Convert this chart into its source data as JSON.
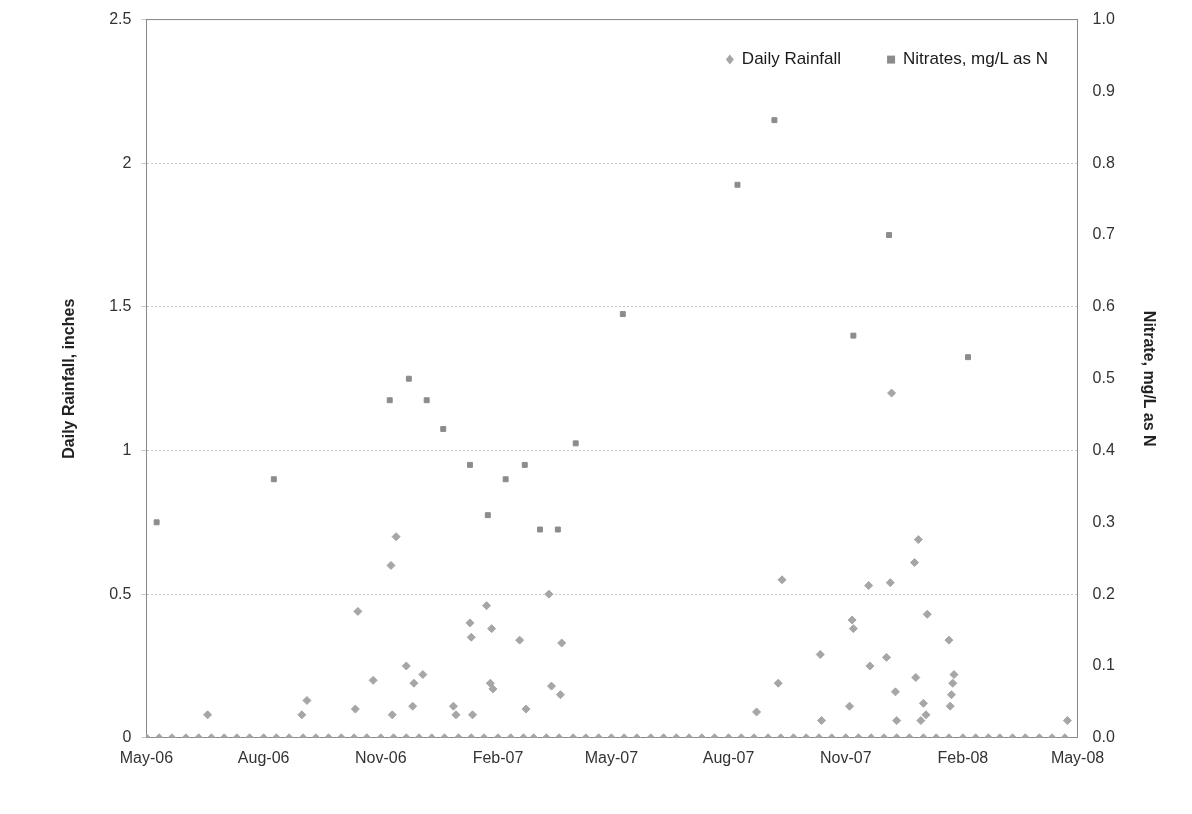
{
  "chart_data": {
    "type": "scatter",
    "ylabel": "Daily Rainfall, inches",
    "y2label": "Nitrate, mg/L as N",
    "xlim": [
      "2006-05-01",
      "2008-05-01"
    ],
    "xticks": [
      {
        "value": "2006-05-01",
        "label": "May-06"
      },
      {
        "value": "2006-08-01",
        "label": "Aug-06"
      },
      {
        "value": "2006-11-01",
        "label": "Nov-06"
      },
      {
        "value": "2007-02-01",
        "label": "Feb-07"
      },
      {
        "value": "2007-05-01",
        "label": "May-07"
      },
      {
        "value": "2007-08-01",
        "label": "Aug-07"
      },
      {
        "value": "2007-11-01",
        "label": "Nov-07"
      },
      {
        "value": "2008-02-01",
        "label": "Feb-08"
      },
      {
        "value": "2008-05-01",
        "label": "May-08"
      }
    ],
    "ylim": [
      0,
      2.5
    ],
    "yticks": [
      0,
      0.5,
      1,
      1.5,
      2,
      2.5
    ],
    "y2lim": [
      0,
      1
    ],
    "y2ticks": [
      {
        "value": 0,
        "label": "0.0"
      },
      {
        "value": 0.1,
        "label": "0.1"
      },
      {
        "value": 0.2,
        "label": "0.2"
      },
      {
        "value": 0.3,
        "label": "0.3"
      },
      {
        "value": 0.4,
        "label": "0.4"
      },
      {
        "value": 0.5,
        "label": "0.5"
      },
      {
        "value": 0.6,
        "label": "0.6"
      },
      {
        "value": 0.7,
        "label": "0.7"
      },
      {
        "value": 0.8,
        "label": "0.8"
      },
      {
        "value": 0.9,
        "label": "0.9"
      },
      {
        "value": 1,
        "label": "1.0"
      }
    ],
    "grid": "y",
    "legend": "top right",
    "series": [
      {
        "name": "Daily Rainfall",
        "color": "#a6a6a6",
        "marker": "diamond",
        "x": [
          "2006-06-18",
          "2006-08-31",
          "2006-09-04",
          "2006-10-12",
          "2006-10-14",
          "2006-10-26",
          "2006-11-09",
          "2006-11-10",
          "2006-11-13",
          "2006-11-21",
          "2006-11-26",
          "2006-11-27",
          "2006-12-04",
          "2006-12-28",
          "2006-12-30",
          "2007-01-10",
          "2007-01-11",
          "2007-01-12",
          "2007-01-23",
          "2007-01-26",
          "2007-01-27",
          "2007-01-28",
          "2007-02-18",
          "2007-02-23",
          "2007-03-13",
          "2007-03-15",
          "2007-03-22",
          "2007-03-23",
          "2007-08-23",
          "2007-09-09",
          "2007-09-12",
          "2007-10-12",
          "2007-10-13",
          "2007-11-04",
          "2007-11-06",
          "2007-11-07",
          "2007-11-19",
          "2007-11-20",
          "2007-12-03",
          "2007-12-06",
          "2007-12-07",
          "2007-12-10",
          "2007-12-11",
          "2007-12-25",
          "2007-12-26",
          "2007-12-28",
          "2007-12-30",
          "2008-01-01",
          "2008-01-03",
          "2008-01-04",
          "2008-01-21",
          "2008-01-22",
          "2008-01-23",
          "2008-01-24",
          "2008-01-25",
          "2008-04-23",
          "2006-05-01",
          "2006-05-11",
          "2006-05-21",
          "2006-06-01",
          "2006-06-11",
          "2006-06-21",
          "2006-07-01",
          "2006-07-11",
          "2006-07-21",
          "2006-08-01",
          "2006-08-11",
          "2006-08-21",
          "2006-09-01",
          "2006-09-11",
          "2006-09-21",
          "2006-10-01",
          "2006-10-11",
          "2006-10-21",
          "2006-11-01",
          "2006-11-11",
          "2006-11-21",
          "2006-12-01",
          "2006-12-11",
          "2006-12-21",
          "2007-01-01",
          "2007-01-11",
          "2007-01-21",
          "2007-02-01",
          "2007-02-11",
          "2007-02-21",
          "2007-03-01",
          "2007-03-11",
          "2007-03-21",
          "2007-04-01",
          "2007-04-11",
          "2007-04-21",
          "2007-05-01",
          "2007-05-11",
          "2007-05-21",
          "2007-06-01",
          "2007-06-11",
          "2007-06-21",
          "2007-07-01",
          "2007-07-11",
          "2007-07-21",
          "2007-08-01",
          "2007-08-11",
          "2007-08-21",
          "2007-09-01",
          "2007-09-11",
          "2007-09-21",
          "2007-10-01",
          "2007-10-11",
          "2007-10-21",
          "2007-11-01",
          "2007-11-11",
          "2007-11-21",
          "2007-12-01",
          "2007-12-11",
          "2007-12-21",
          "2008-01-01",
          "2008-01-11",
          "2008-01-21",
          "2008-02-01",
          "2008-02-11",
          "2008-02-21",
          "2008-03-01",
          "2008-03-11",
          "2008-03-21",
          "2008-04-01",
          "2008-04-11",
          "2008-04-21"
        ],
        "values": [
          0.08,
          0.08,
          0.13,
          0.1,
          0.44,
          0.2,
          0.6,
          0.08,
          0.7,
          0.25,
          0.11,
          0.19,
          0.22,
          0.11,
          0.08,
          0.4,
          0.35,
          0.08,
          0.46,
          0.19,
          0.38,
          0.17,
          0.34,
          0.1,
          0.5,
          0.18,
          0.15,
          0.33,
          0.09,
          0.19,
          0.55,
          0.29,
          0.06,
          0.11,
          0.41,
          0.38,
          0.53,
          0.25,
          0.28,
          0.54,
          1.2,
          0.16,
          0.06,
          0.61,
          0.21,
          0.69,
          0.06,
          0.12,
          0.08,
          0.43,
          0.34,
          0.11,
          0.15,
          0.19,
          0.22,
          0.06,
          0,
          0,
          0,
          0,
          0,
          0,
          0,
          0,
          0,
          0,
          0,
          0,
          0,
          0,
          0,
          0,
          0,
          0,
          0,
          0,
          0,
          0,
          0,
          0,
          0,
          0,
          0,
          0,
          0,
          0,
          0,
          0,
          0,
          0,
          0,
          0,
          0,
          0,
          0,
          0,
          0,
          0,
          0,
          0,
          0,
          0,
          0,
          0,
          0,
          0,
          0,
          0,
          0,
          0,
          0,
          0,
          0,
          0,
          0,
          0,
          0,
          0,
          0,
          0,
          0,
          0,
          0,
          0,
          0,
          0,
          0,
          0
        ]
      },
      {
        "name": "Nitrates, mg/L as N",
        "color": "#8c8c8c",
        "marker": "square",
        "axis": "y2",
        "x": [
          "2006-05-09",
          "2006-08-09",
          "2006-11-08",
          "2006-11-23",
          "2006-12-07",
          "2006-12-20",
          "2007-01-10",
          "2007-01-24",
          "2007-02-07",
          "2007-02-22",
          "2007-03-06",
          "2007-03-20",
          "2007-04-03",
          "2007-05-10",
          "2007-08-08",
          "2007-09-06",
          "2007-11-07",
          "2007-12-05",
          "2008-02-05"
        ],
        "values": [
          0.3,
          0.36,
          0.47,
          0.5,
          0.47,
          0.43,
          0.38,
          0.31,
          0.36,
          0.38,
          0.29,
          0.29,
          0.41,
          0.59,
          0.77,
          0.86,
          0.56,
          0.7,
          0.53
        ]
      }
    ]
  }
}
